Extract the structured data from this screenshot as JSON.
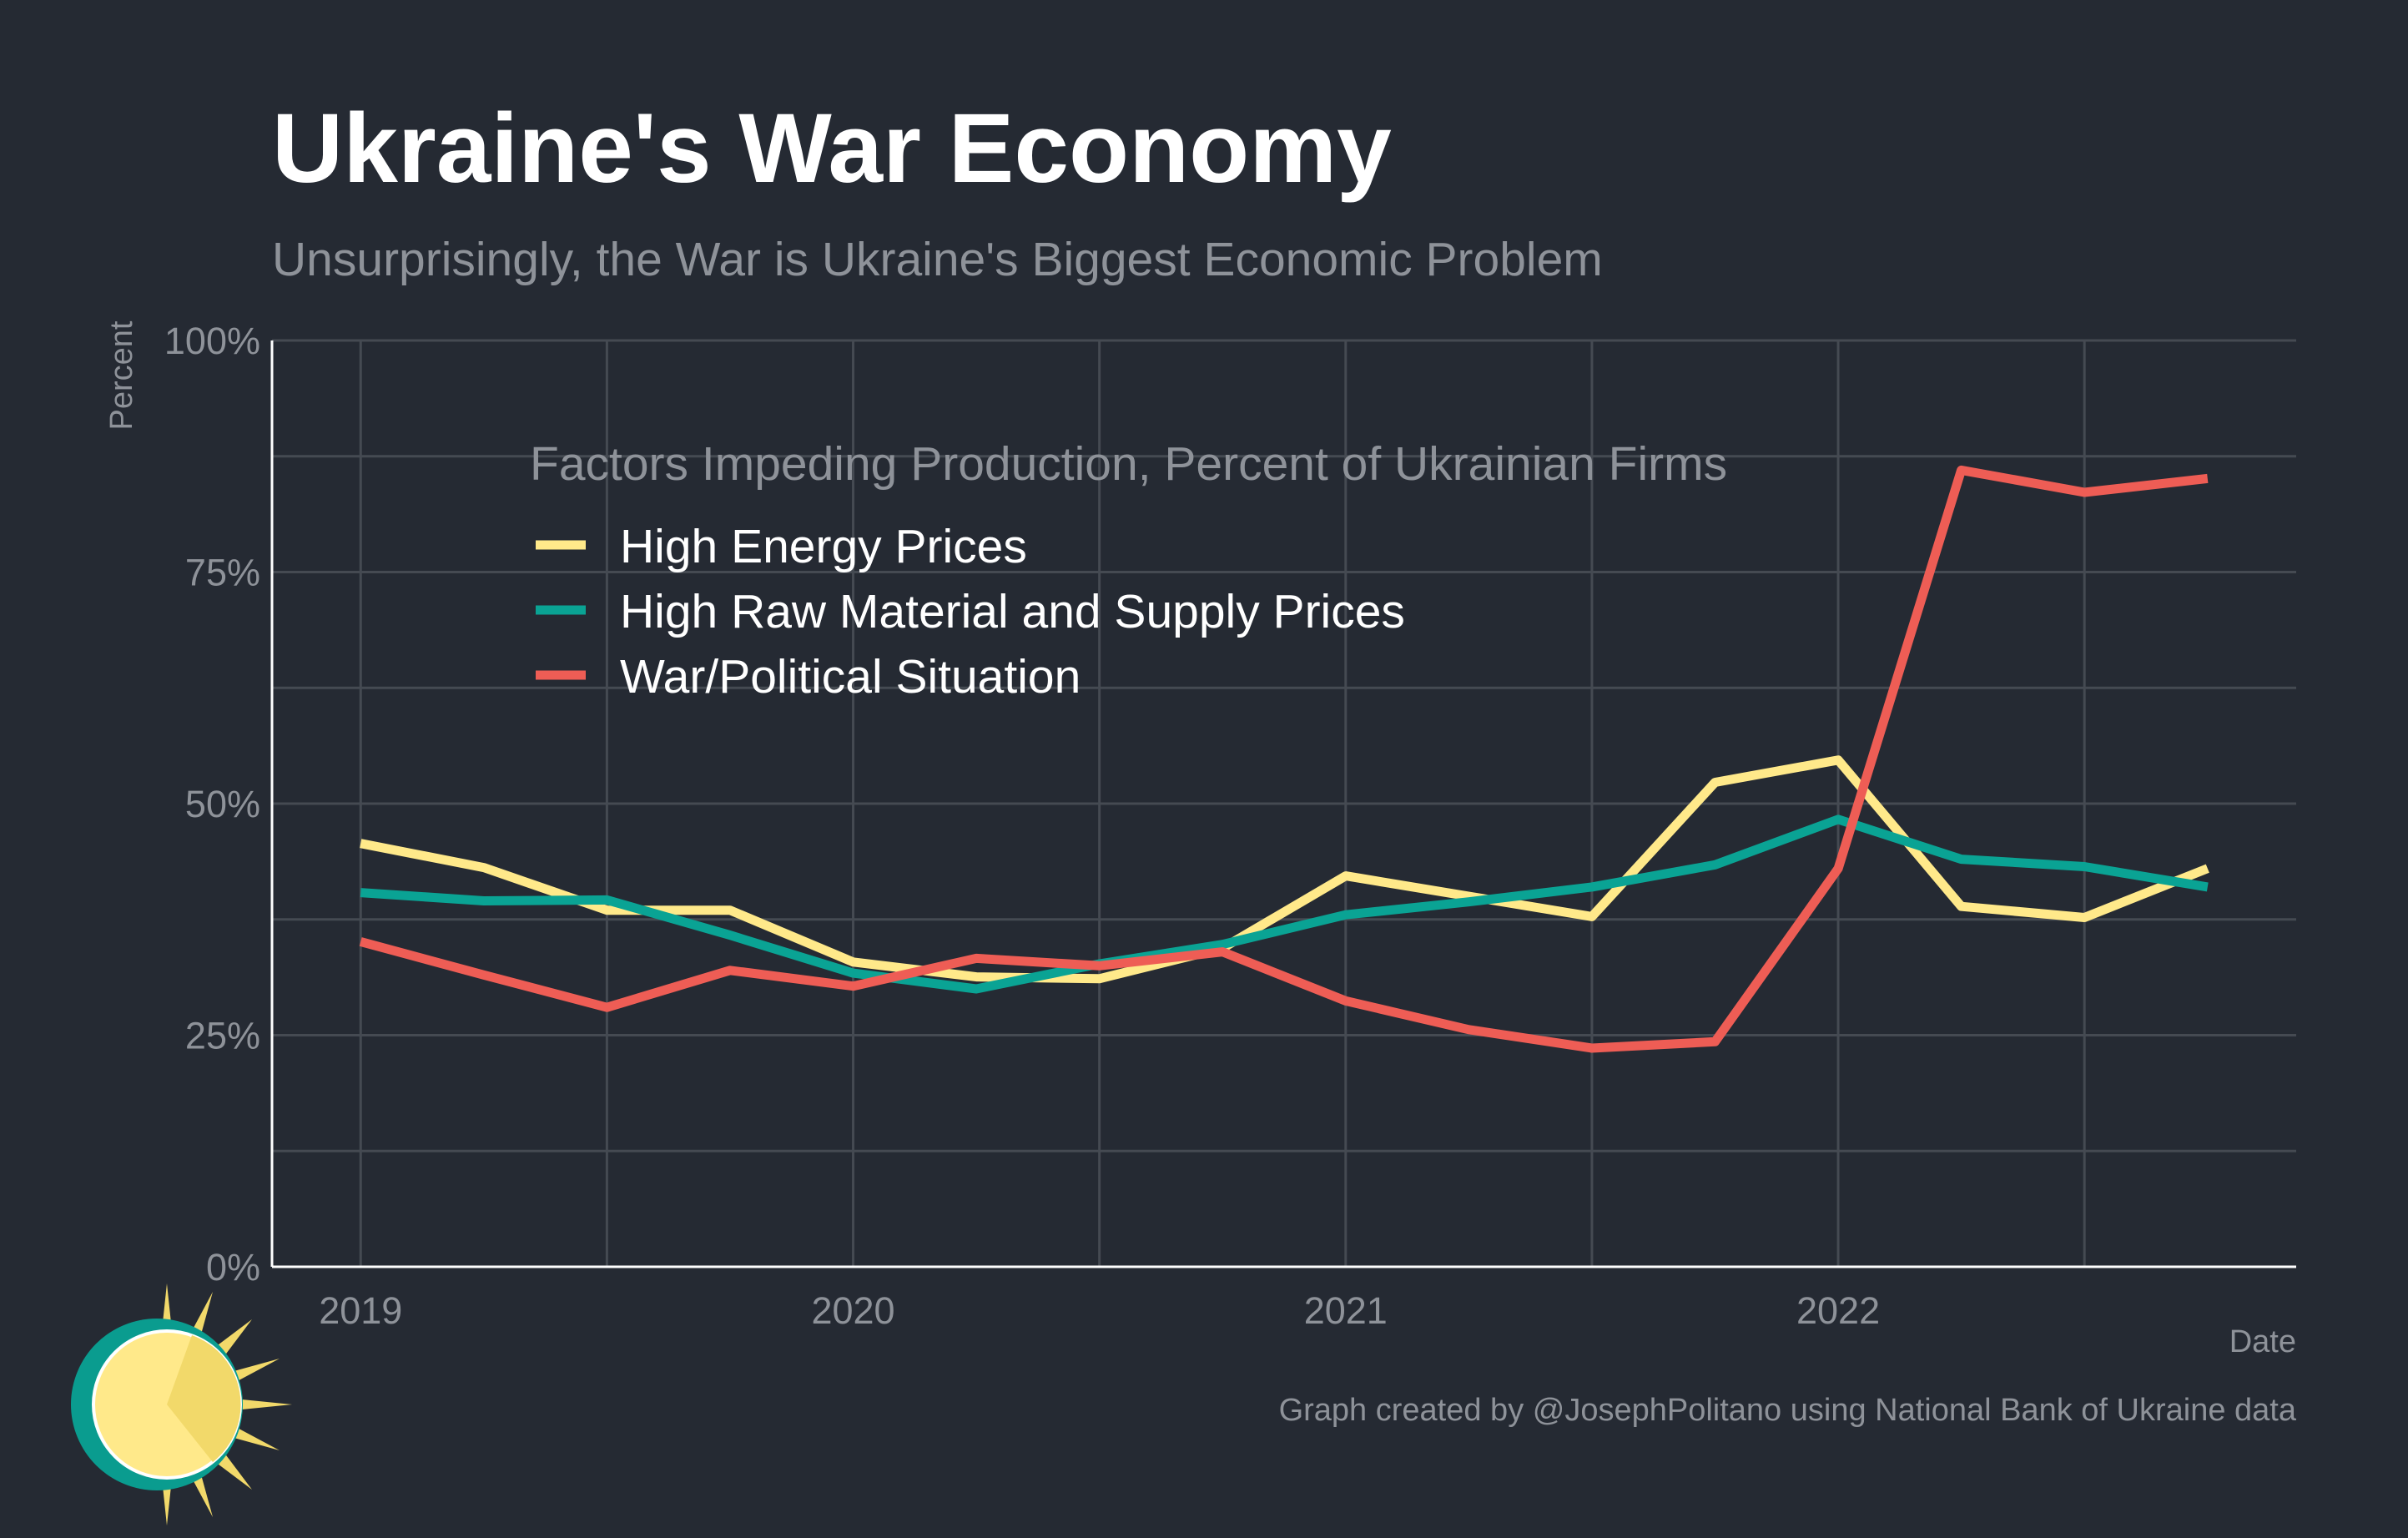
{
  "title": "Ukraine's War Economy",
  "subtitle": "Unsurprisingly, the War is Ukraine's Biggest Economic Problem",
  "caption": "Graph created by @JosephPolitano using National Bank of Ukraine data",
  "logo": "sun-logo",
  "colors": {
    "background": "#252a33",
    "grid": "#454a52",
    "axis_text": "#8e9299",
    "energy": "#ffe98a",
    "raw": "#0aa394",
    "war": "#ee5d55"
  },
  "chart_data": {
    "type": "line",
    "xlabel": "Date",
    "ylabel": "Percent",
    "ylim": [
      0,
      100
    ],
    "xlim": [
      2018.82,
      2022.93
    ],
    "yticks": [
      0,
      25,
      50,
      75,
      100
    ],
    "ytick_labels": [
      "0%",
      "25%",
      "50%",
      "75%",
      "100%"
    ],
    "xticks": [
      2019,
      2020,
      2021,
      2022
    ],
    "xtick_labels": [
      "2019",
      "2020",
      "2021",
      "2022"
    ],
    "grid": true,
    "legend_title": "Factors Impeding Production, Percent of Ukrainian Firms",
    "legend_position": "top-left",
    "x": [
      "2019-01-01",
      "2019-04-01",
      "2019-07-01",
      "2019-10-01",
      "2020-01-01",
      "2020-04-01",
      "2020-07-01",
      "2020-10-01",
      "2021-01-01",
      "2021-04-01",
      "2021-07-01",
      "2021-10-01",
      "2022-01-01",
      "2022-04-01",
      "2022-07-01",
      "2022-10-01"
    ],
    "series": [
      {
        "name": "High Energy Prices",
        "color": "#ffe98a",
        "values": [
          45.7,
          43.1,
          38.5,
          38.5,
          32.9,
          31.3,
          31.1,
          34.4,
          42.2,
          40.0,
          37.8,
          52.3,
          54.7,
          38.9,
          37.7,
          43.0
        ]
      },
      {
        "name": "High Raw Material and Supply Prices",
        "color": "#0aa394",
        "values": [
          40.4,
          39.5,
          39.6,
          35.8,
          31.7,
          30.0,
          32.7,
          34.8,
          38.0,
          39.4,
          41.0,
          43.4,
          48.3,
          44.0,
          43.2,
          41.0
        ]
      },
      {
        "name": "War/Political Situation",
        "color": "#ee5d55",
        "values": [
          35.1,
          31.5,
          28.0,
          32.0,
          30.3,
          33.3,
          32.5,
          34.0,
          28.7,
          25.6,
          23.6,
          24.3,
          43.0,
          86.0,
          83.6,
          85.1
        ]
      }
    ]
  }
}
